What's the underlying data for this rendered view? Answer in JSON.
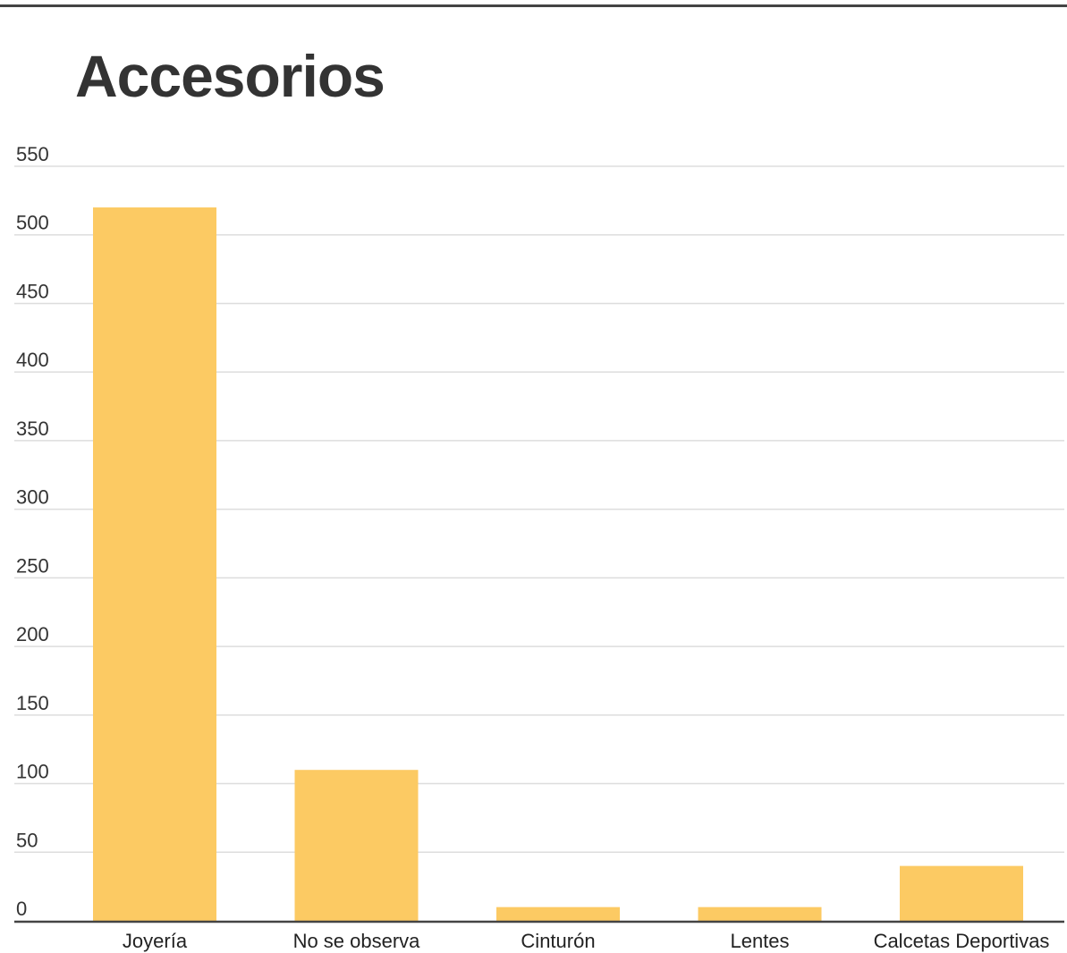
{
  "chart_data": {
    "type": "bar",
    "title": "Accesorios",
    "xlabel": "",
    "ylabel": "",
    "categories": [
      "Joyería",
      "No se observa",
      "Cinturón",
      "Lentes",
      "Calcetas Deportivas"
    ],
    "values": [
      520,
      110,
      10,
      10,
      40
    ],
    "ylim": [
      0,
      550
    ],
    "yticks": [
      0,
      50,
      100,
      150,
      200,
      250,
      300,
      350,
      400,
      450,
      500,
      550
    ],
    "grid": true,
    "legend": "none",
    "colors": {
      "bar": "#FCCA63",
      "grid": "#dddddd",
      "axis": "#444444",
      "text": "#333333"
    }
  }
}
